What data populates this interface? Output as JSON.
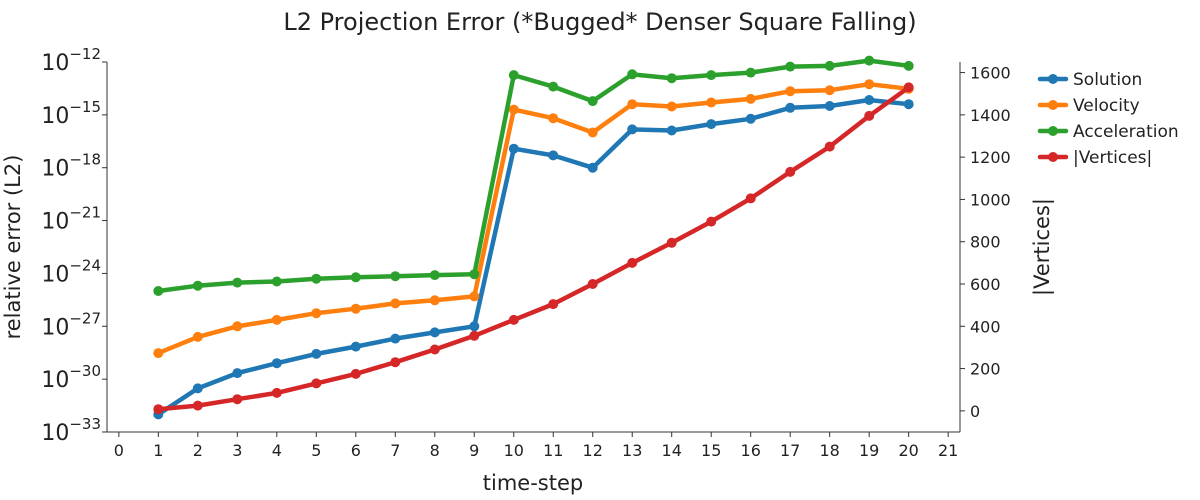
{
  "chart_data": {
    "type": "line",
    "title": "L2 Projection Error (*Bugged* Denser Square Falling)",
    "xlabel": "time-step",
    "ylabel_left": "relative error (L2)",
    "ylabel_right": "|Vertices|",
    "xlim": [
      -0.3,
      21.3
    ],
    "xticks": [
      0,
      1,
      2,
      3,
      4,
      5,
      6,
      7,
      8,
      9,
      10,
      11,
      12,
      13,
      14,
      15,
      16,
      17,
      18,
      19,
      20,
      21
    ],
    "left_axis": {
      "scale": "log",
      "ylim_exp": [
        -33,
        -12
      ],
      "tick_exps": [
        -33,
        -30,
        -27,
        -24,
        -21,
        -18,
        -15,
        -12
      ]
    },
    "right_axis": {
      "scale": "linear",
      "ylim": [
        -100,
        1650
      ],
      "ticks": [
        0,
        200,
        400,
        600,
        800,
        1000,
        1200,
        1400,
        1600
      ]
    },
    "legend_position": "top-right (outside plot)",
    "x": [
      1,
      2,
      3,
      4,
      5,
      6,
      7,
      8,
      9,
      10,
      11,
      12,
      13,
      14,
      15,
      16,
      17,
      18,
      19,
      20
    ],
    "series": [
      {
        "name": "Solution",
        "axis": "left",
        "color": "#1f77b4",
        "values": [
          1e-32,
          3e-31,
          2.2e-30,
          8e-30,
          2.7e-29,
          7e-29,
          2e-28,
          4.5e-28,
          1e-27,
          1.2e-17,
          5e-18,
          1e-18,
          1.5e-16,
          1.3e-16,
          3e-16,
          6e-16,
          2.5e-15,
          3.2e-15,
          7e-15,
          4e-15
        ]
      },
      {
        "name": "Velocity",
        "axis": "left",
        "color": "#ff7f0e",
        "values": [
          3e-29,
          2.5e-28,
          1e-27,
          2.3e-27,
          5.5e-27,
          1e-26,
          2e-26,
          3e-26,
          5e-26,
          2e-15,
          6.5e-16,
          1e-16,
          4e-15,
          3e-15,
          5e-15,
          8e-15,
          2.2e-14,
          2.5e-14,
          5.5e-14,
          3e-14
        ]
      },
      {
        "name": "Acceleration",
        "axis": "left",
        "color": "#2ca02c",
        "values": [
          1e-25,
          2e-25,
          3e-25,
          3.5e-25,
          5e-25,
          6e-25,
          7e-25,
          8e-25,
          9e-25,
          1.8e-13,
          4e-14,
          6e-15,
          2e-13,
          1.2e-13,
          1.8e-13,
          2.5e-13,
          5.5e-13,
          6e-13,
          1.2e-12,
          6e-13
        ]
      },
      {
        "name": "|Vertices|",
        "axis": "right",
        "color": "#d62728",
        "values": [
          8,
          25,
          55,
          85,
          130,
          175,
          230,
          290,
          355,
          430,
          505,
          600,
          700,
          795,
          895,
          1005,
          1130,
          1250,
          1395,
          1530
        ]
      }
    ]
  }
}
